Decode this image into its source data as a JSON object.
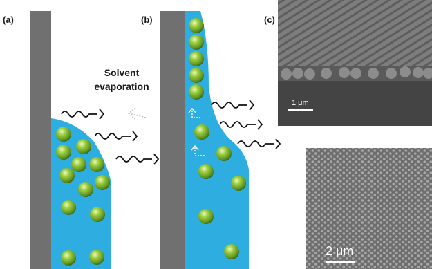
{
  "panels": {
    "a": {
      "label": "(a)",
      "note_line1": "Solvent",
      "note_line2": "evaporation"
    },
    "b": {
      "label": "(b)"
    },
    "c": {
      "label": "(c)",
      "scale_top": "1 μm",
      "scale_bottom": "2 μm"
    }
  },
  "colors": {
    "substrate": "#707070",
    "liquid": "#2eaee0",
    "particle": "#7bb62a",
    "particle_highlight": "#e4f6a8",
    "particle_shadow": "#3f6b0f",
    "sem_background": "#7a7a7a",
    "sem_dark_band": "#3c3c3c"
  },
  "icons": {
    "evaporation_arrows": "wavy-arrow-icon",
    "flow_arrows": "dashed-arrow-icon"
  }
}
